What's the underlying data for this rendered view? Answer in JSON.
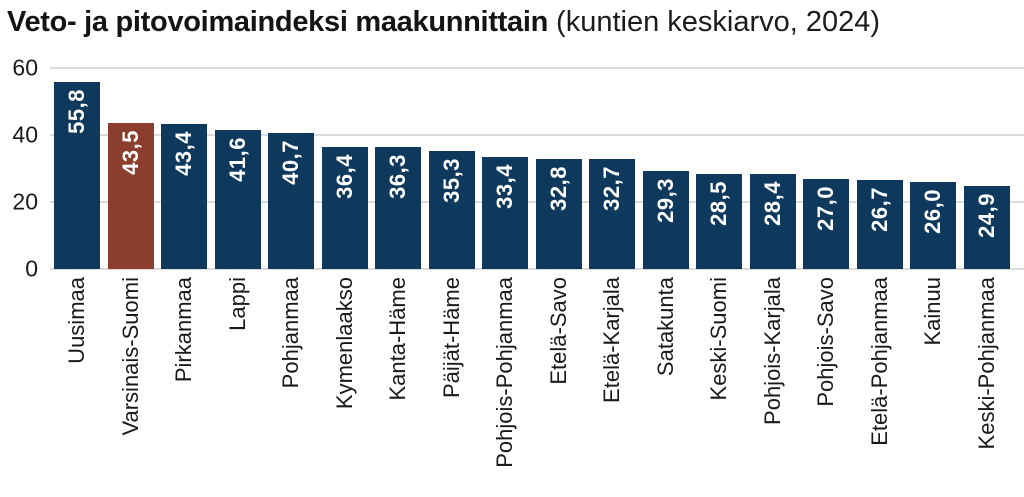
{
  "header": {
    "title": "Veto- ja pitovoimaindeksi maakunnittain",
    "subtitle": "(kuntien keskiarvo, 2024)"
  },
  "chart_data": {
    "type": "bar",
    "title": "Veto- ja pitovoimaindeksi maakunnittain (kuntien keskiarvo, 2024)",
    "categories": [
      "Uusimaa",
      "Varsinais-Suomi",
      "Pirkanmaa",
      "Lappi",
      "Pohjanmaa",
      "Kymenlaakso",
      "Kanta-Häme",
      "Päijät-Häme",
      "Pohjois-Pohjanmaa",
      "Etelä-Savo",
      "Etelä-Karjala",
      "Satakunta",
      "Keski-Suomi",
      "Pohjois-Karjala",
      "Pohjois-Savo",
      "Etelä-Pohjanmaa",
      "Kainuu",
      "Keski-Pohjanmaa"
    ],
    "values": [
      55.8,
      43.5,
      43.4,
      41.6,
      40.7,
      36.4,
      36.3,
      35.3,
      33.4,
      32.8,
      32.7,
      29.3,
      28.5,
      28.4,
      27.0,
      26.7,
      26.0,
      24.9
    ],
    "value_labels": [
      "55,8",
      "43,5",
      "43,4",
      "41,6",
      "40,7",
      "36,4",
      "36,3",
      "35,3",
      "33,4",
      "32,8",
      "32,7",
      "29,3",
      "28,5",
      "28,4",
      "27,0",
      "26,7",
      "26,0",
      "24,9"
    ],
    "highlight_index": 1,
    "bar_color": "#0F395C",
    "highlight_color": "#8C3E2D",
    "value_label_color": "#FFFFFF",
    "gridline_color": "#DCDCDC",
    "xlabel": "",
    "ylabel": "",
    "ylim": [
      0,
      60
    ],
    "yticks": [
      0,
      20,
      40,
      60
    ],
    "grid": true,
    "legend": false,
    "decimal_separator": ","
  }
}
